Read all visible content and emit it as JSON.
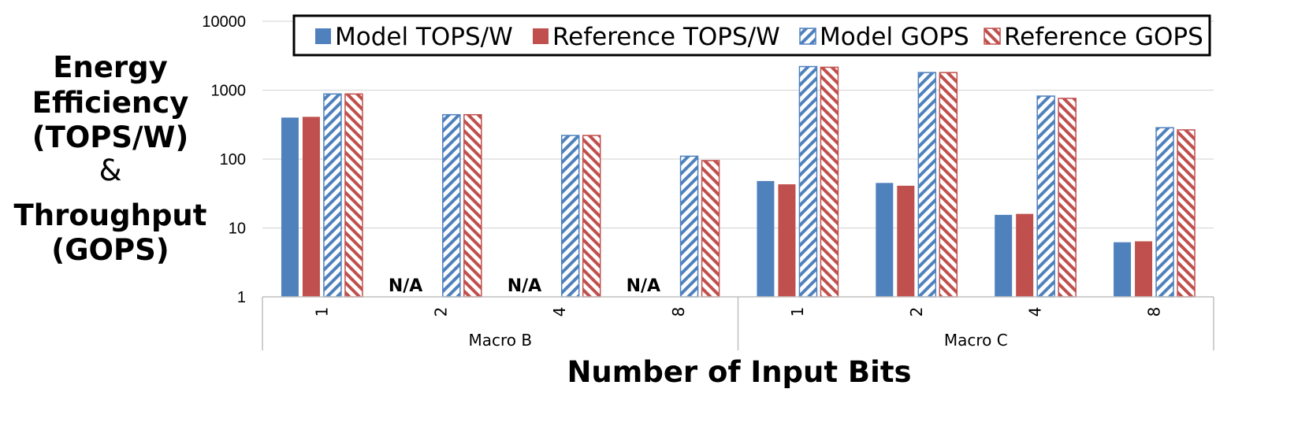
{
  "chart_data": {
    "type": "bar",
    "y_scale": "log",
    "ylim": [
      1,
      10000
    ],
    "y_ticks": [
      "1",
      "10",
      "100",
      "1000",
      "10000"
    ],
    "ylabel_lines": [
      "Energy",
      "Efficiency",
      "(TOPS/W)",
      "&",
      "Throughput",
      "(GOPS)"
    ],
    "xlabel": "Number of Input Bits",
    "groups": [
      {
        "name": "Macro B",
        "categories": [
          "1",
          "2",
          "4",
          "8"
        ]
      },
      {
        "name": "Macro C",
        "categories": [
          "1",
          "2",
          "4",
          "8"
        ]
      }
    ],
    "missing_label": "N/A",
    "legend_position": "top",
    "grid": true,
    "series": [
      {
        "name": "Model TOPS/W",
        "color": "#4f81bd",
        "pattern": "solid",
        "values": [
          400,
          null,
          null,
          null,
          48,
          45,
          15.5,
          6.2
        ]
      },
      {
        "name": "Reference TOPS/W",
        "color": "#c0504d",
        "pattern": "solid",
        "values": [
          410,
          null,
          null,
          null,
          43,
          41,
          16,
          6.4
        ]
      },
      {
        "name": "Model GOPS",
        "color": "#4f81bd",
        "pattern": "hatched",
        "values": [
          880,
          440,
          220,
          110,
          2200,
          1800,
          820,
          285
        ]
      },
      {
        "name": "Reference GOPS",
        "color": "#c0504d",
        "pattern": "hatched",
        "values": [
          880,
          440,
          220,
          95,
          2150,
          1800,
          760,
          265
        ]
      }
    ]
  }
}
